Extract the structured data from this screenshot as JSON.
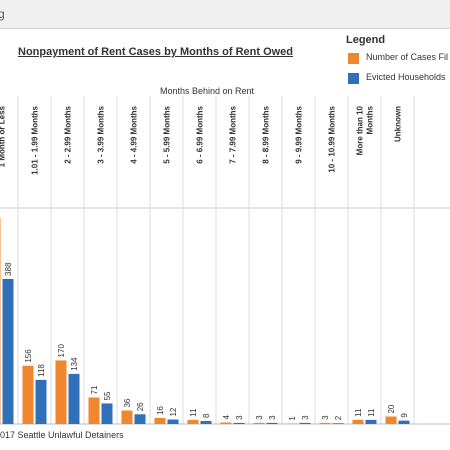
{
  "window": {
    "tab_text": "g"
  },
  "colors": {
    "filed": "#f0862e",
    "evicted": "#2f70b8"
  },
  "footer": {
    "source_note": "017 Seattle Unlawful Detainers"
  },
  "chart_data": {
    "type": "bar",
    "title": "Nonpayment of Rent Cases by Months of Rent Owed",
    "column_axis_title": "Months Behind on Rent",
    "legend": {
      "title": "Legend",
      "placement": "top-right",
      "items": [
        {
          "label": "Number of Cases Fil",
          "color": "#f0862e"
        },
        {
          "label": "Evicted Households",
          "color": "#2f70b8"
        }
      ]
    },
    "categories": [
      "1 Month or Less",
      "1.01 - 1.99 Months",
      "2 - 2.99 Months",
      "3 - 3.99 Months",
      "4 - 4.99 Months",
      "5 - 5.99 Months",
      "6 - 6.99 Months",
      "7 - 7.99 Months",
      "8 - 8.99 Months",
      "9 - 9.99 Months",
      "10 - 10.99 Months",
      "More than 10 Months",
      "Unknown"
    ],
    "category_label_lines": [
      [
        "1 Month or Less"
      ],
      [
        "1.01 - 1.99 Months"
      ],
      [
        "2 - 2.99 Months"
      ],
      [
        "3 - 3.99 Months"
      ],
      [
        "4 - 4.99 Months"
      ],
      [
        "5 - 5.99 Months"
      ],
      [
        "6 - 6.99 Months"
      ],
      [
        "7 - 7.99 Months"
      ],
      [
        "8 - 8.99 Months"
      ],
      [
        "9 - 9.99 Months"
      ],
      [
        "10 - 10.99 Months"
      ],
      [
        "More than 10",
        "Months"
      ],
      [
        "Unknown"
      ]
    ],
    "series": [
      {
        "name": "Number of Cases Filed",
        "color": "#f0862e",
        "values": [
          551,
          156,
          170,
          71,
          36,
          16,
          11,
          4,
          3,
          1,
          3,
          11,
          20
        ]
      },
      {
        "name": "Evicted Households",
        "color": "#2f70b8",
        "values": [
          388,
          118,
          134,
          55,
          26,
          12,
          8,
          3,
          3,
          3,
          2,
          11,
          9
        ]
      }
    ],
    "ylim": [
      0,
      551
    ],
    "grid": false
  }
}
